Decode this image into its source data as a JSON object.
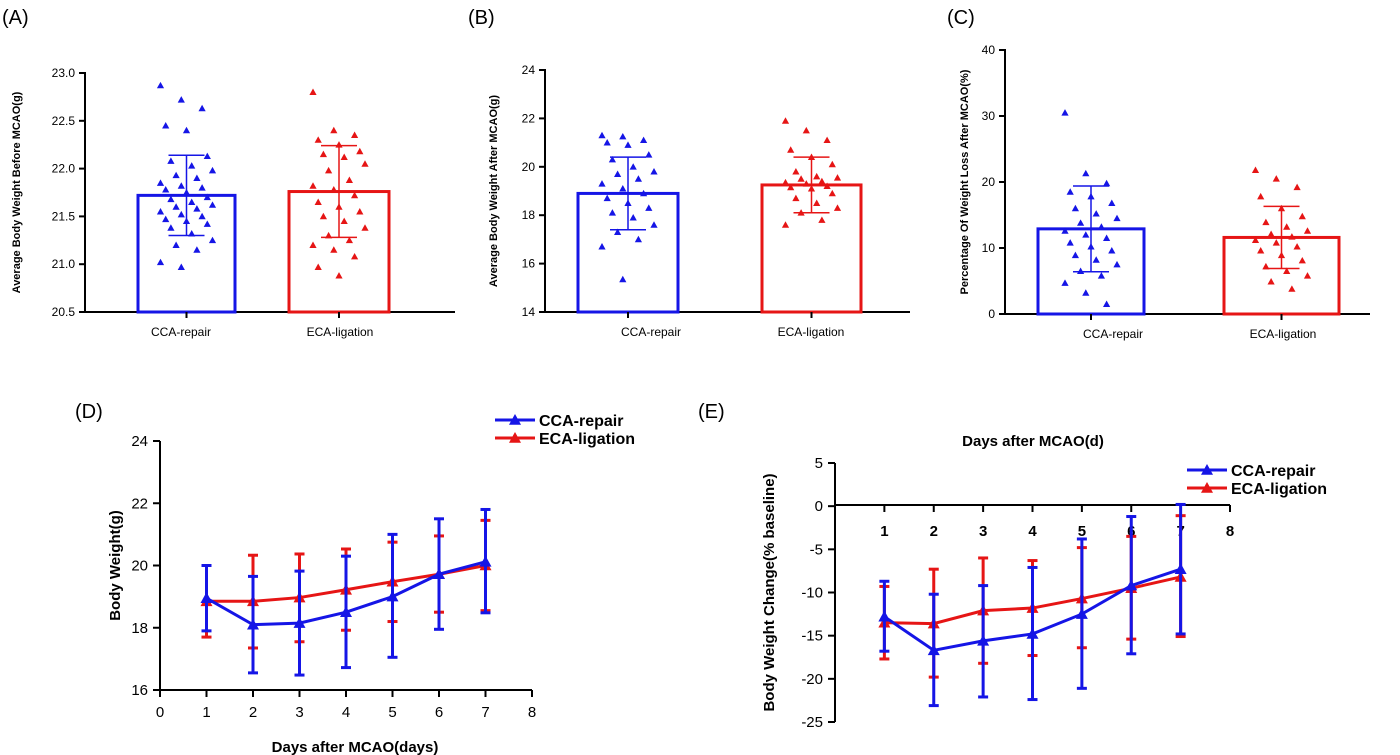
{
  "colors": {
    "blue": "#1515e6",
    "red": "#e61515"
  },
  "chart_data": [
    {
      "panel": "(A)",
      "type": "bar",
      "ylabel": "Average Body Weight Before MCAO(g)",
      "ylim": [
        20.5,
        23.0
      ],
      "yticks": [
        20.5,
        21.0,
        21.5,
        22.0,
        22.5,
        23.0
      ],
      "ytick_labels": [
        "20.5",
        "21.0",
        "21.5",
        "22.0",
        "22.5",
        "23.0"
      ],
      "categories": [
        "CCA-repair",
        "ECA-ligation"
      ],
      "values": [
        21.72,
        21.76
      ],
      "sd": [
        0.42,
        0.48
      ],
      "points": [
        [
          22.87,
          22.72,
          22.63,
          22.45,
          22.4,
          22.13,
          22.08,
          22.03,
          21.98,
          21.93,
          21.9,
          21.85,
          21.82,
          21.8,
          21.78,
          21.75,
          21.7,
          21.68,
          21.65,
          21.62,
          21.6,
          21.58,
          21.55,
          21.52,
          21.5,
          21.47,
          21.45,
          21.42,
          21.38,
          21.32,
          21.25,
          21.2,
          21.15,
          21.02,
          20.97
        ],
        [
          22.8,
          22.4,
          22.35,
          22.3,
          22.25,
          22.18,
          22.15,
          22.12,
          22.05,
          21.98,
          21.88,
          21.82,
          21.78,
          21.72,
          21.65,
          21.6,
          21.55,
          21.5,
          21.45,
          21.38,
          21.3,
          21.25,
          21.2,
          21.15,
          21.08,
          20.97,
          20.88
        ]
      ]
    },
    {
      "panel": "(B)",
      "type": "bar",
      "ylabel": "Average Body Weight After MCAO(g)",
      "ylim": [
        14,
        24
      ],
      "yticks": [
        14,
        16,
        18,
        20,
        22,
        24
      ],
      "ytick_labels": [
        "14",
        "16",
        "18",
        "20",
        "22",
        "24"
      ],
      "categories": [
        "CCA-repair",
        "ECA-ligation"
      ],
      "values": [
        18.9,
        19.25
      ],
      "sd": [
        1.5,
        1.15
      ],
      "points": [
        [
          21.3,
          21.25,
          21.1,
          21.0,
          20.9,
          20.5,
          20.3,
          20.0,
          19.8,
          19.7,
          19.5,
          19.3,
          19.1,
          18.9,
          18.7,
          18.5,
          18.3,
          18.1,
          17.9,
          17.6,
          17.3,
          17.0,
          16.7,
          15.35
        ],
        [
          21.9,
          21.5,
          21.1,
          20.7,
          20.4,
          20.1,
          19.8,
          19.6,
          19.55,
          19.5,
          19.4,
          19.35,
          19.3,
          19.2,
          19.15,
          19.1,
          18.9,
          18.7,
          18.5,
          18.3,
          18.1,
          17.8,
          17.6
        ]
      ]
    },
    {
      "panel": "(C)",
      "type": "bar",
      "ylabel": "Percentage Of Weight Loss After MCAO(%)",
      "ylim": [
        0,
        40
      ],
      "yticks": [
        0,
        10,
        20,
        30,
        40
      ],
      "ytick_labels": [
        "0",
        "10",
        "20",
        "30",
        "40"
      ],
      "categories": [
        "CCA-repair",
        "ECA-ligation"
      ],
      "values": [
        12.9,
        11.6
      ],
      "sd": [
        6.5,
        4.7
      ],
      "points": [
        [
          30.5,
          21.3,
          19.8,
          18.5,
          17.8,
          16.8,
          16.0,
          15.2,
          14.5,
          13.8,
          13.2,
          12.6,
          12.0,
          11.5,
          10.8,
          10.2,
          9.6,
          8.9,
          8.2,
          7.5,
          6.5,
          5.8,
          4.7,
          3.2,
          1.5
        ],
        [
          21.8,
          20.5,
          19.2,
          17.8,
          16.0,
          14.8,
          13.9,
          13.2,
          12.6,
          12.1,
          11.7,
          11.2,
          10.8,
          10.2,
          9.6,
          8.9,
          8.1,
          7.2,
          6.5,
          5.8,
          4.9,
          3.8
        ]
      ]
    },
    {
      "panel": "(D)",
      "type": "line",
      "xlabel": "Days after MCAO(days)",
      "ylabel": "Body Weight(g)",
      "xlim": [
        0,
        8
      ],
      "ylim": [
        16,
        24
      ],
      "xticks": [
        0,
        1,
        2,
        3,
        4,
        5,
        6,
        7,
        8
      ],
      "xtick_labels": [
        "0",
        "1",
        "2",
        "3",
        "4",
        "5",
        "6",
        "7",
        "8"
      ],
      "yticks": [
        16,
        18,
        20,
        22,
        24
      ],
      "ytick_labels": [
        "16",
        "18",
        "20",
        "22",
        "24"
      ],
      "x": [
        1,
        2,
        3,
        4,
        5,
        6,
        7
      ],
      "series": [
        {
          "name": "CCA-repair",
          "values": [
            18.95,
            18.1,
            18.15,
            18.5,
            19.0,
            19.72,
            20.12
          ],
          "upper": [
            20.0,
            19.65,
            19.82,
            20.3,
            21.0,
            21.5,
            21.8
          ],
          "lower": [
            17.9,
            16.55,
            16.48,
            16.72,
            17.05,
            17.95,
            18.48
          ]
        },
        {
          "name": "ECA-ligation",
          "values": [
            18.85,
            18.85,
            18.97,
            19.22,
            19.48,
            19.72,
            20.0
          ],
          "upper": [
            20.0,
            20.33,
            20.37,
            20.53,
            20.75,
            20.95,
            21.45
          ],
          "lower": [
            17.7,
            17.35,
            17.55,
            17.92,
            18.2,
            18.5,
            18.55
          ]
        }
      ],
      "legend": "top-right"
    },
    {
      "panel": "(E)",
      "type": "line",
      "title": "Days after MCAO(d)",
      "ylabel": "Body Weight Change(% baseline)",
      "xlim": [
        0,
        8
      ],
      "ylim": [
        -25,
        5
      ],
      "xticks": [
        1,
        2,
        3,
        4,
        5,
        6,
        7,
        8
      ],
      "xtick_labels": [
        "1",
        "2",
        "3",
        "4",
        "5",
        "6",
        "7",
        "8"
      ],
      "yticks": [
        5,
        0,
        -5,
        -10,
        -15,
        -20,
        -25
      ],
      "ytick_labels": [
        "5",
        "0",
        "-5",
        "-10",
        "-15",
        "-20",
        "-25"
      ],
      "x": [
        1,
        2,
        3,
        4,
        5,
        6,
        7
      ],
      "series": [
        {
          "name": "CCA-repair",
          "values": [
            -12.8,
            -16.7,
            -15.6,
            -14.8,
            -12.5,
            -9.2,
            -7.3
          ],
          "upper": [
            -8.7,
            -10.2,
            -9.2,
            -7.1,
            -3.8,
            -1.2,
            0.2
          ],
          "lower": [
            -16.8,
            -23.1,
            -22.1,
            -22.4,
            -21.1,
            -17.1,
            -14.8
          ]
        },
        {
          "name": "ECA-ligation",
          "values": [
            -13.5,
            -13.6,
            -12.1,
            -11.8,
            -10.7,
            -9.5,
            -8.2
          ],
          "upper": [
            -9.3,
            -7.3,
            -6.0,
            -6.3,
            -4.8,
            -3.5,
            -1.1
          ],
          "lower": [
            -17.7,
            -19.8,
            -18.2,
            -17.3,
            -16.4,
            -15.4,
            -15.1
          ]
        }
      ],
      "legend": "top-right"
    }
  ]
}
